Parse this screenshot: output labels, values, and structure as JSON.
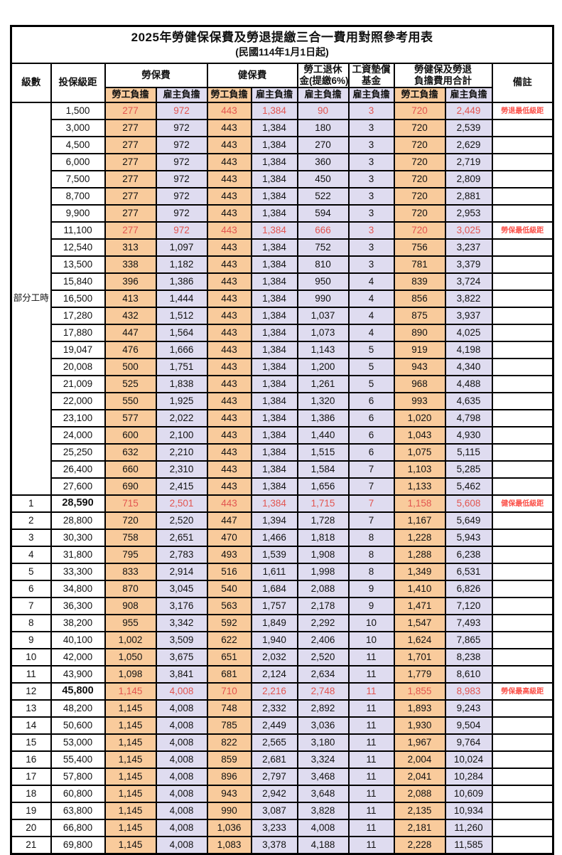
{
  "title": "2025年勞健保保費及勞退提繳三合一費用對照參考用表",
  "subtitle": "(民國114年1月1日起)",
  "colors": {
    "employee_bg": "#f9cb9c",
    "employer_bg": "#dfdcf0",
    "highlight_red": "#e25550",
    "remark_red": "#fb5149",
    "border": "#000000"
  },
  "header": {
    "level": "級數",
    "bracket": "投保級距",
    "labor_insurance": "勞保費",
    "health_insurance": "健保費",
    "pension_line1": "勞工退休",
    "pension_line2": "金(提繳6%)",
    "wage_fund_line1": "工資墊償",
    "wage_fund_line2": "基金",
    "total_line1": "勞健保及勞退",
    "total_line2": "負擔費用合計",
    "remark": "備註",
    "employee_share": "勞工負擔",
    "employer_share": "雇主負擔"
  },
  "group_label": "部分工時",
  "group_rowspan": 23,
  "rows": [
    {
      "level": "",
      "bracket": "1,500",
      "values": [
        "277",
        "972",
        "443",
        "1,384",
        "90",
        "3",
        "720",
        "2,449"
      ],
      "remark": "勞退最低級距",
      "red": true,
      "bold": false
    },
    {
      "level": "",
      "bracket": "3,000",
      "values": [
        "277",
        "972",
        "443",
        "1,384",
        "180",
        "3",
        "720",
        "2,539"
      ],
      "remark": "",
      "red": false,
      "bold": false
    },
    {
      "level": "",
      "bracket": "4,500",
      "values": [
        "277",
        "972",
        "443",
        "1,384",
        "270",
        "3",
        "720",
        "2,629"
      ],
      "remark": "",
      "red": false,
      "bold": false
    },
    {
      "level": "",
      "bracket": "6,000",
      "values": [
        "277",
        "972",
        "443",
        "1,384",
        "360",
        "3",
        "720",
        "2,719"
      ],
      "remark": "",
      "red": false,
      "bold": false
    },
    {
      "level": "",
      "bracket": "7,500",
      "values": [
        "277",
        "972",
        "443",
        "1,384",
        "450",
        "3",
        "720",
        "2,809"
      ],
      "remark": "",
      "red": false,
      "bold": false
    },
    {
      "level": "",
      "bracket": "8,700",
      "values": [
        "277",
        "972",
        "443",
        "1,384",
        "522",
        "3",
        "720",
        "2,881"
      ],
      "remark": "",
      "red": false,
      "bold": false
    },
    {
      "level": "",
      "bracket": "9,900",
      "values": [
        "277",
        "972",
        "443",
        "1,384",
        "594",
        "3",
        "720",
        "2,953"
      ],
      "remark": "",
      "red": false,
      "bold": false
    },
    {
      "level": "",
      "bracket": "11,100",
      "values": [
        "277",
        "972",
        "443",
        "1,384",
        "666",
        "3",
        "720",
        "3,025"
      ],
      "remark": "勞保最低級距",
      "red": true,
      "bold": false
    },
    {
      "level": "",
      "bracket": "12,540",
      "values": [
        "313",
        "1,097",
        "443",
        "1,384",
        "752",
        "3",
        "756",
        "3,237"
      ],
      "remark": "",
      "red": false,
      "bold": false
    },
    {
      "level": "",
      "bracket": "13,500",
      "values": [
        "338",
        "1,182",
        "443",
        "1,384",
        "810",
        "3",
        "781",
        "3,379"
      ],
      "remark": "",
      "red": false,
      "bold": false
    },
    {
      "level": "",
      "bracket": "15,840",
      "values": [
        "396",
        "1,386",
        "443",
        "1,384",
        "950",
        "4",
        "839",
        "3,724"
      ],
      "remark": "",
      "red": false,
      "bold": false
    },
    {
      "level": "",
      "bracket": "16,500",
      "values": [
        "413",
        "1,444",
        "443",
        "1,384",
        "990",
        "4",
        "856",
        "3,822"
      ],
      "remark": "",
      "red": false,
      "bold": false
    },
    {
      "level": "",
      "bracket": "17,280",
      "values": [
        "432",
        "1,512",
        "443",
        "1,384",
        "1,037",
        "4",
        "875",
        "3,937"
      ],
      "remark": "",
      "red": false,
      "bold": false
    },
    {
      "level": "",
      "bracket": "17,880",
      "values": [
        "447",
        "1,564",
        "443",
        "1,384",
        "1,073",
        "4",
        "890",
        "4,025"
      ],
      "remark": "",
      "red": false,
      "bold": false
    },
    {
      "level": "",
      "bracket": "19,047",
      "values": [
        "476",
        "1,666",
        "443",
        "1,384",
        "1,143",
        "5",
        "919",
        "4,198"
      ],
      "remark": "",
      "red": false,
      "bold": false
    },
    {
      "level": "",
      "bracket": "20,008",
      "values": [
        "500",
        "1,751",
        "443",
        "1,384",
        "1,200",
        "5",
        "943",
        "4,340"
      ],
      "remark": "",
      "red": false,
      "bold": false
    },
    {
      "level": "",
      "bracket": "21,009",
      "values": [
        "525",
        "1,838",
        "443",
        "1,384",
        "1,261",
        "5",
        "968",
        "4,488"
      ],
      "remark": "",
      "red": false,
      "bold": false
    },
    {
      "level": "",
      "bracket": "22,000",
      "values": [
        "550",
        "1,925",
        "443",
        "1,384",
        "1,320",
        "6",
        "993",
        "4,635"
      ],
      "remark": "",
      "red": false,
      "bold": false
    },
    {
      "level": "",
      "bracket": "23,100",
      "values": [
        "577",
        "2,022",
        "443",
        "1,384",
        "1,386",
        "6",
        "1,020",
        "4,798"
      ],
      "remark": "",
      "red": false,
      "bold": false
    },
    {
      "level": "",
      "bracket": "24,000",
      "values": [
        "600",
        "2,100",
        "443",
        "1,384",
        "1,440",
        "6",
        "1,043",
        "4,930"
      ],
      "remark": "",
      "red": false,
      "bold": false
    },
    {
      "level": "",
      "bracket": "25,250",
      "values": [
        "632",
        "2,210",
        "443",
        "1,384",
        "1,515",
        "6",
        "1,075",
        "5,115"
      ],
      "remark": "",
      "red": false,
      "bold": false
    },
    {
      "level": "",
      "bracket": "26,400",
      "values": [
        "660",
        "2,310",
        "443",
        "1,384",
        "1,584",
        "7",
        "1,103",
        "5,285"
      ],
      "remark": "",
      "red": false,
      "bold": false
    },
    {
      "level": "",
      "bracket": "27,600",
      "values": [
        "690",
        "2,415",
        "443",
        "1,384",
        "1,656",
        "7",
        "1,133",
        "5,462"
      ],
      "remark": "",
      "red": false,
      "bold": false
    },
    {
      "level": "1",
      "bracket": "28,590",
      "values": [
        "715",
        "2,501",
        "443",
        "1,384",
        "1,715",
        "7",
        "1,158",
        "5,608"
      ],
      "remark": "健保最低級距",
      "red": true,
      "bold": true
    },
    {
      "level": "2",
      "bracket": "28,800",
      "values": [
        "720",
        "2,520",
        "447",
        "1,394",
        "1,728",
        "7",
        "1,167",
        "5,649"
      ],
      "remark": "",
      "red": false,
      "bold": false
    },
    {
      "level": "3",
      "bracket": "30,300",
      "values": [
        "758",
        "2,651",
        "470",
        "1,466",
        "1,818",
        "8",
        "1,228",
        "5,943"
      ],
      "remark": "",
      "red": false,
      "bold": false
    },
    {
      "level": "4",
      "bracket": "31,800",
      "values": [
        "795",
        "2,783",
        "493",
        "1,539",
        "1,908",
        "8",
        "1,288",
        "6,238"
      ],
      "remark": "",
      "red": false,
      "bold": false
    },
    {
      "level": "5",
      "bracket": "33,300",
      "values": [
        "833",
        "2,914",
        "516",
        "1,611",
        "1,998",
        "8",
        "1,349",
        "6,531"
      ],
      "remark": "",
      "red": false,
      "bold": false
    },
    {
      "level": "6",
      "bracket": "34,800",
      "values": [
        "870",
        "3,045",
        "540",
        "1,684",
        "2,088",
        "9",
        "1,410",
        "6,826"
      ],
      "remark": "",
      "red": false,
      "bold": false
    },
    {
      "level": "7",
      "bracket": "36,300",
      "values": [
        "908",
        "3,176",
        "563",
        "1,757",
        "2,178",
        "9",
        "1,471",
        "7,120"
      ],
      "remark": "",
      "red": false,
      "bold": false
    },
    {
      "level": "8",
      "bracket": "38,200",
      "values": [
        "955",
        "3,342",
        "592",
        "1,849",
        "2,292",
        "10",
        "1,547",
        "7,493"
      ],
      "remark": "",
      "red": false,
      "bold": false
    },
    {
      "level": "9",
      "bracket": "40,100",
      "values": [
        "1,002",
        "3,509",
        "622",
        "1,940",
        "2,406",
        "10",
        "1,624",
        "7,865"
      ],
      "remark": "",
      "red": false,
      "bold": false
    },
    {
      "level": "10",
      "bracket": "42,000",
      "values": [
        "1,050",
        "3,675",
        "651",
        "2,032",
        "2,520",
        "11",
        "1,701",
        "8,238"
      ],
      "remark": "",
      "red": false,
      "bold": false
    },
    {
      "level": "11",
      "bracket": "43,900",
      "values": [
        "1,098",
        "3,841",
        "681",
        "2,124",
        "2,634",
        "11",
        "1,779",
        "8,610"
      ],
      "remark": "",
      "red": false,
      "bold": false
    },
    {
      "level": "12",
      "bracket": "45,800",
      "values": [
        "1,145",
        "4,008",
        "710",
        "2,216",
        "2,748",
        "11",
        "1,855",
        "8,983"
      ],
      "remark": "勞保最高級距",
      "red": true,
      "bold": true
    },
    {
      "level": "13",
      "bracket": "48,200",
      "values": [
        "1,145",
        "4,008",
        "748",
        "2,332",
        "2,892",
        "11",
        "1,893",
        "9,243"
      ],
      "remark": "",
      "red": false,
      "bold": false
    },
    {
      "level": "14",
      "bracket": "50,600",
      "values": [
        "1,145",
        "4,008",
        "785",
        "2,449",
        "3,036",
        "11",
        "1,930",
        "9,504"
      ],
      "remark": "",
      "red": false,
      "bold": false
    },
    {
      "level": "15",
      "bracket": "53,000",
      "values": [
        "1,145",
        "4,008",
        "822",
        "2,565",
        "3,180",
        "11",
        "1,967",
        "9,764"
      ],
      "remark": "",
      "red": false,
      "bold": false
    },
    {
      "level": "16",
      "bracket": "55,400",
      "values": [
        "1,145",
        "4,008",
        "859",
        "2,681",
        "3,324",
        "11",
        "2,004",
        "10,024"
      ],
      "remark": "",
      "red": false,
      "bold": false
    },
    {
      "level": "17",
      "bracket": "57,800",
      "values": [
        "1,145",
        "4,008",
        "896",
        "2,797",
        "3,468",
        "11",
        "2,041",
        "10,284"
      ],
      "remark": "",
      "red": false,
      "bold": false
    },
    {
      "level": "18",
      "bracket": "60,800",
      "values": [
        "1,145",
        "4,008",
        "943",
        "2,942",
        "3,648",
        "11",
        "2,088",
        "10,609"
      ],
      "remark": "",
      "red": false,
      "bold": false
    },
    {
      "level": "19",
      "bracket": "63,800",
      "values": [
        "1,145",
        "4,008",
        "990",
        "3,087",
        "3,828",
        "11",
        "2,135",
        "10,934"
      ],
      "remark": "",
      "red": false,
      "bold": false
    },
    {
      "level": "20",
      "bracket": "66,800",
      "values": [
        "1,145",
        "4,008",
        "1,036",
        "3,233",
        "4,008",
        "11",
        "2,181",
        "11,260"
      ],
      "remark": "",
      "red": false,
      "bold": false
    },
    {
      "level": "21",
      "bracket": "69,800",
      "values": [
        "1,145",
        "4,008",
        "1,083",
        "3,378",
        "4,188",
        "11",
        "2,228",
        "11,585"
      ],
      "remark": "",
      "red": false,
      "bold": false
    }
  ]
}
